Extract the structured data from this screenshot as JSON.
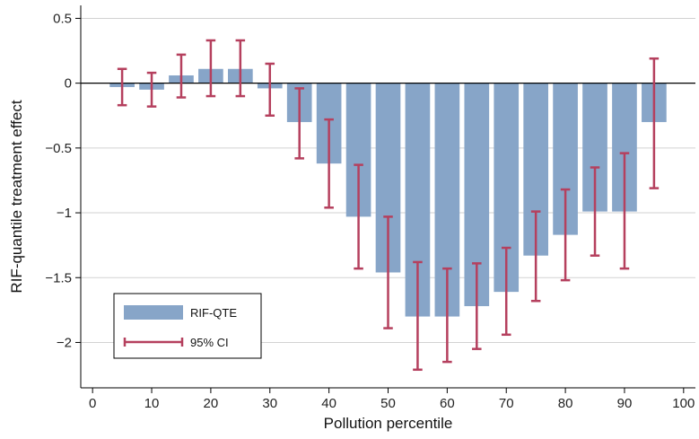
{
  "chart_data": {
    "type": "bar",
    "xlabel": "Pollution percentile",
    "ylabel": "RIF-quantile treatment effect",
    "xlim": [
      -2,
      102
    ],
    "ylim": [
      -2.35,
      0.6
    ],
    "x_ticks": [
      0,
      10,
      20,
      30,
      40,
      50,
      60,
      70,
      80,
      90,
      100
    ],
    "y_ticks": [
      0.5,
      0,
      -0.5,
      -1,
      -1.5,
      -2
    ],
    "y_tick_labels": [
      "0.5",
      "0",
      "−0.5",
      "−1",
      "−1.5",
      "−2"
    ],
    "x_tick_labels": [
      "0",
      "10",
      "20",
      "30",
      "40",
      "50",
      "60",
      "70",
      "80",
      "90",
      "100"
    ],
    "grid": "horizontal",
    "legend_position": "bottom-left",
    "colors": {
      "bar": "#87a5c8",
      "ci": "#b5405e"
    },
    "x": [
      5,
      10,
      15,
      20,
      25,
      30,
      35,
      40,
      45,
      50,
      55,
      60,
      65,
      70,
      75,
      80,
      85,
      90,
      95
    ],
    "series": [
      {
        "name": "RIF-QTE",
        "kind": "bar",
        "values": [
          -0.03,
          -0.05,
          0.06,
          0.11,
          0.11,
          -0.04,
          -0.3,
          -0.62,
          -1.03,
          -1.46,
          -1.8,
          -1.8,
          -1.72,
          -1.61,
          -1.33,
          -1.17,
          -0.99,
          -0.99,
          -0.3
        ]
      },
      {
        "name": "95% CI",
        "kind": "errorbar",
        "lower": [
          -0.17,
          -0.18,
          -0.11,
          -0.1,
          -0.1,
          -0.25,
          -0.58,
          -0.96,
          -1.43,
          -1.89,
          -2.21,
          -2.15,
          -2.05,
          -1.94,
          -1.68,
          -1.52,
          -1.33,
          -1.43,
          -0.81
        ],
        "upper": [
          0.11,
          0.08,
          0.22,
          0.33,
          0.33,
          0.15,
          -0.04,
          -0.28,
          -0.63,
          -1.03,
          -1.38,
          -1.43,
          -1.39,
          -1.27,
          -0.99,
          -0.82,
          -0.65,
          -0.54,
          0.19
        ]
      }
    ]
  }
}
